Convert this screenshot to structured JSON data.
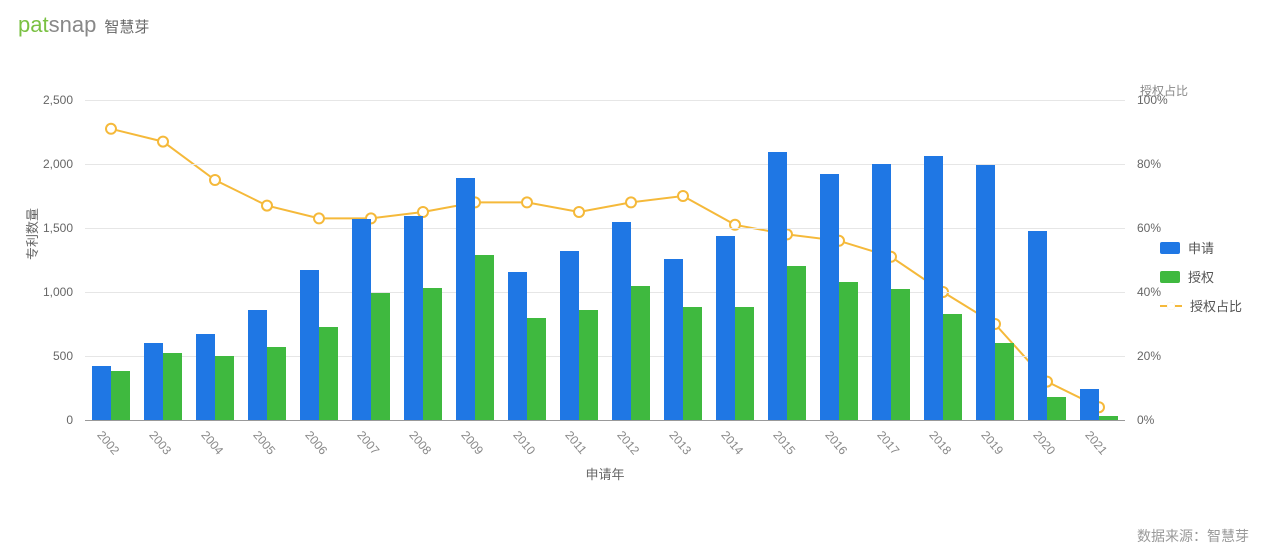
{
  "brand": {
    "logo_part1": "pat",
    "logo_part2": "snap",
    "cn": "智慧芽",
    "color_part1": "#7ac143",
    "color_part2": "#888888"
  },
  "chart": {
    "type": "bar+line",
    "background_color": "#ffffff",
    "grid_color": "#e6e6e6",
    "axis_color": "#999999",
    "tick_label_color": "#666666",
    "tick_fontsize": 12,
    "label_fontsize": 13,
    "y_left": {
      "label": "专利数量",
      "min": 0,
      "max": 2500,
      "step": 500
    },
    "y_right": {
      "title": "授权占比",
      "min": 0,
      "max": 100,
      "step": 20,
      "suffix": "%"
    },
    "x": {
      "label": "申请年",
      "rotation_deg": 50
    },
    "categories": [
      "2002",
      "2003",
      "2004",
      "2005",
      "2006",
      "2007",
      "2008",
      "2009",
      "2010",
      "2011",
      "2012",
      "2013",
      "2014",
      "2015",
      "2016",
      "2017",
      "2018",
      "2019",
      "2020",
      "2021"
    ],
    "series": {
      "applications": {
        "label": "申请",
        "color": "#1f77e4",
        "values": [
          420,
          600,
          670,
          860,
          1170,
          1570,
          1590,
          1890,
          1160,
          1320,
          1550,
          1260,
          1440,
          2090,
          1920,
          2000,
          2060,
          1990,
          1480,
          240
        ]
      },
      "grants": {
        "label": "授权",
        "color": "#3fb93f",
        "values": [
          380,
          520,
          500,
          570,
          730,
          990,
          1030,
          1290,
          800,
          860,
          1050,
          880,
          880,
          1200,
          1080,
          1020,
          830,
          600,
          180,
          30
        ]
      },
      "grant_ratio": {
        "label": "授权占比",
        "color": "#f5b93a",
        "marker_fill": "#ffffff",
        "marker_size": 5,
        "line_width": 2,
        "values_pct": [
          91,
          87,
          75,
          67,
          63,
          63,
          65,
          68,
          68,
          65,
          68,
          70,
          61,
          58,
          56,
          51,
          40,
          30,
          12,
          4
        ]
      }
    },
    "bar_group_width": 0.72,
    "bar_inner_gap": 0.0
  },
  "legend": {
    "items": [
      {
        "key": "applications",
        "kind": "rect"
      },
      {
        "key": "grants",
        "kind": "rect"
      },
      {
        "key": "grant_ratio",
        "kind": "line"
      }
    ]
  },
  "source": {
    "text": "数据来源：智慧芽"
  }
}
